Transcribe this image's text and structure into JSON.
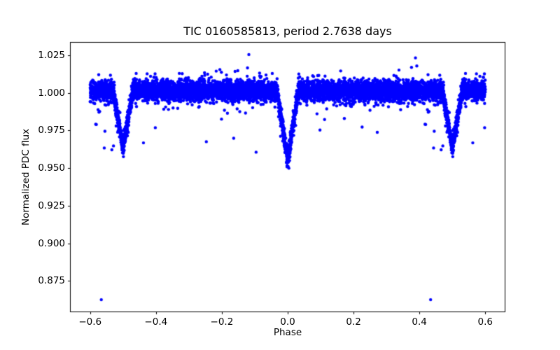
{
  "window": {
    "title": "TIC 0160585813, period 2.7638 days"
  },
  "chart_data": {
    "type": "scatter",
    "title": "TIC 0160585813, period 2.7638 days",
    "xlabel": "Phase",
    "ylabel": "Normalized PDC flux",
    "xlim": [
      -0.66,
      0.66
    ],
    "ylim": [
      0.8545,
      1.0336
    ],
    "xticks": [
      -0.6,
      -0.4,
      -0.2,
      0.0,
      0.2,
      0.4,
      0.6
    ],
    "xtick_labels": [
      "−0.6",
      "−0.4",
      "−0.2",
      "0.0",
      "0.2",
      "0.4",
      "0.6"
    ],
    "yticks": [
      0.875,
      0.9,
      0.925,
      0.95,
      0.975,
      1.0,
      1.025
    ],
    "ytick_labels": [
      "0.875",
      "0.900",
      "0.925",
      "0.950",
      "0.975",
      "1.000",
      "1.025"
    ],
    "grid": false,
    "legend": null,
    "marker": {
      "shape": "dot",
      "color": "#0000ff",
      "radius": 2.2
    },
    "description": "Phase-folded eclipsing-binary light curve; dense flux band near 1.0 with V-shaped primary eclipse at phase 0.0 (min flux ~0.955) and secondary eclipses at phases ±0.5 (min flux ~0.9635); phases beyond ±0.4 are plotted twice (wrap duplication to ±0.6).",
    "model": {
      "seed": 7,
      "n_points": 6500,
      "band_flux": 1.0015,
      "noise_sigma": 0.0033,
      "wide_noise_sigma": 0.0062,
      "wide_noise_frac": 0.018,
      "duplicate_beyond_phase": 0.4,
      "eclipses": [
        {
          "name": "primary",
          "center": 0.0,
          "half_width": 0.032,
          "depth": 0.047
        },
        {
          "name": "secondary",
          "center": 0.5,
          "half_width": 0.03,
          "depth": 0.038
        }
      ]
    },
    "outliers": [
      [
        0.434,
        0.8626
      ],
      [
        0.429,
        0.9877
      ],
      [
        0.419,
        0.979
      ],
      [
        0.445,
        0.9745
      ],
      [
        0.443,
        0.9634
      ],
      [
        0.466,
        0.9622
      ],
      [
        0.471,
        0.9648
      ],
      [
        0.479,
        0.978
      ],
      [
        -0.484,
        0.9784
      ],
      [
        -0.479,
        0.987
      ],
      [
        -0.438,
        0.9668
      ],
      [
        -0.402,
        0.9769
      ],
      [
        -0.362,
        0.989
      ],
      [
        -0.348,
        0.99
      ],
      [
        -0.247,
        0.9676
      ],
      [
        -0.201,
        0.9826
      ],
      [
        -0.192,
        0.9885
      ],
      [
        -0.183,
        0.9865
      ],
      [
        -0.164,
        0.9699
      ],
      [
        -0.128,
        0.9866
      ],
      [
        -0.096,
        0.9606
      ],
      [
        0.024,
        0.9784
      ],
      [
        0.089,
        0.9861
      ],
      [
        0.098,
        0.9753
      ],
      [
        0.112,
        0.9823
      ],
      [
        0.172,
        0.983
      ],
      [
        0.226,
        0.9773
      ],
      [
        0.25,
        0.9885
      ],
      [
        0.272,
        0.9738
      ],
      [
        0.343,
        0.9888
      ],
      [
        0.427,
        0.9872
      ],
      [
        0.417,
        0.9792
      ],
      [
        -0.118,
        1.0255
      ],
      [
        -0.122,
        1.0166
      ],
      [
        -0.206,
        1.0155
      ],
      [
        0.388,
        1.0233
      ],
      [
        0.376,
        1.017
      ],
      [
        0.392,
        1.0179
      ]
    ]
  }
}
